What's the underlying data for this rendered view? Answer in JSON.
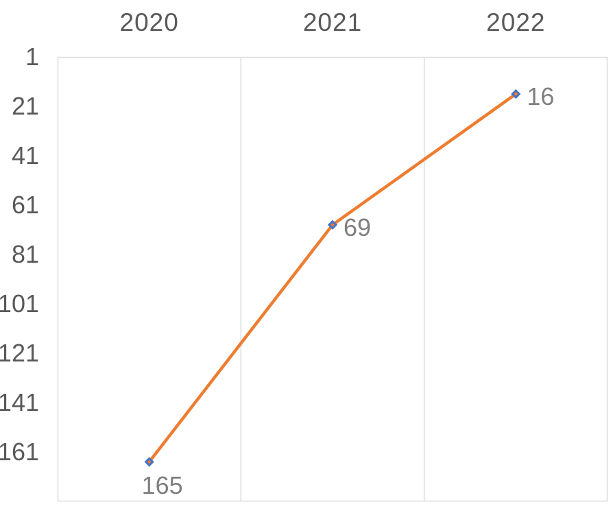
{
  "chart_data": {
    "type": "line",
    "title": "",
    "categories": [
      "2020",
      "2021",
      "2022"
    ],
    "series": [
      {
        "values": [
          165,
          69,
          16
        ],
        "line_color": "#ED7D31",
        "marker": "diamond",
        "marker_fill": "#ED7D31",
        "marker_border": "#4472C4"
      }
    ],
    "data_labels": {
      "texts": [
        "165",
        "69",
        "16"
      ],
      "positions": [
        "below",
        "right",
        "right"
      ],
      "color": "#7F7F7F"
    },
    "x_axis": {
      "position": "top",
      "labels": [
        "2020",
        "2021",
        "2022"
      ],
      "color": "#595959"
    },
    "y_axis": {
      "reversed": true,
      "min": 1,
      "max": 181,
      "major_unit": 20,
      "tick_values": [
        1,
        21,
        41,
        61,
        81,
        101,
        121,
        141,
        161
      ],
      "tick_labels": [
        "1",
        "21",
        "41",
        "61",
        "81",
        "101",
        "121",
        "141",
        "161"
      ],
      "color": "#595959"
    },
    "gridlines": {
      "vertical": true,
      "horizontal": false,
      "color": "#D9D9D9"
    },
    "plot_border_color": "#D9D9D9",
    "background": "#FFFFFF",
    "legend": "none"
  }
}
